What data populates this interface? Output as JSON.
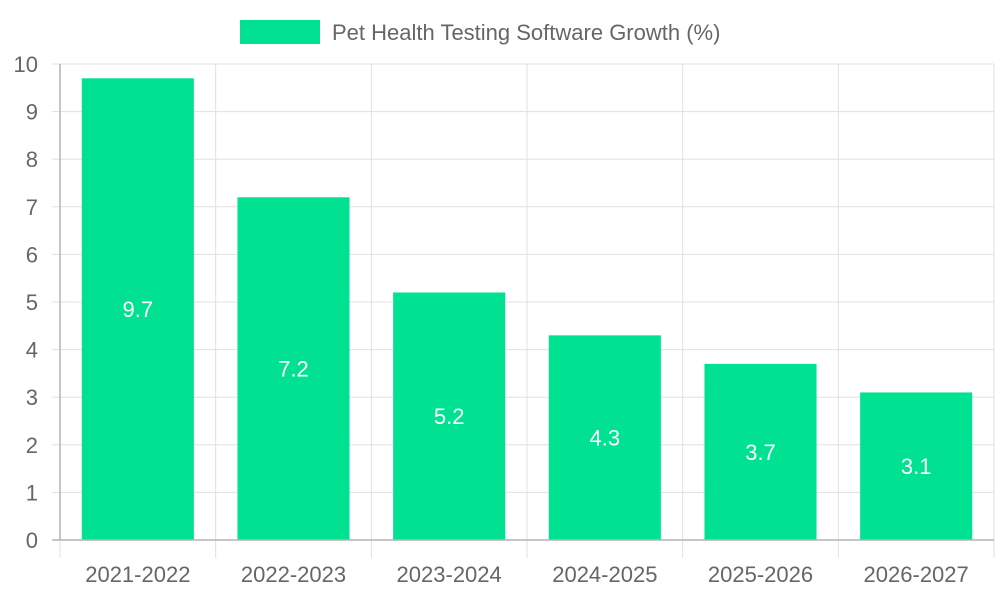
{
  "chart_data": {
    "type": "bar",
    "title": "",
    "xlabel": "",
    "ylabel": "",
    "categories": [
      "2021-2022",
      "2022-2023",
      "2023-2024",
      "2024-2025",
      "2025-2026",
      "2026-2027"
    ],
    "series": [
      {
        "name": "Pet Health Testing Software Growth (%)",
        "values": [
          9.7,
          7.2,
          5.2,
          4.3,
          3.7,
          3.1
        ],
        "color": "#00e291"
      }
    ],
    "ylim": [
      0,
      10
    ],
    "yticks": [
      0,
      1,
      2,
      3,
      4,
      5,
      6,
      7,
      8,
      9,
      10
    ],
    "grid": true,
    "legend_position": "top",
    "data_labels": "inside-center"
  },
  "colors": {
    "bar": "#00e291",
    "grid": "#e0e0e0",
    "axis": "#b3b3b3",
    "tick_text": "#666666",
    "label_text": "#ffffff"
  }
}
